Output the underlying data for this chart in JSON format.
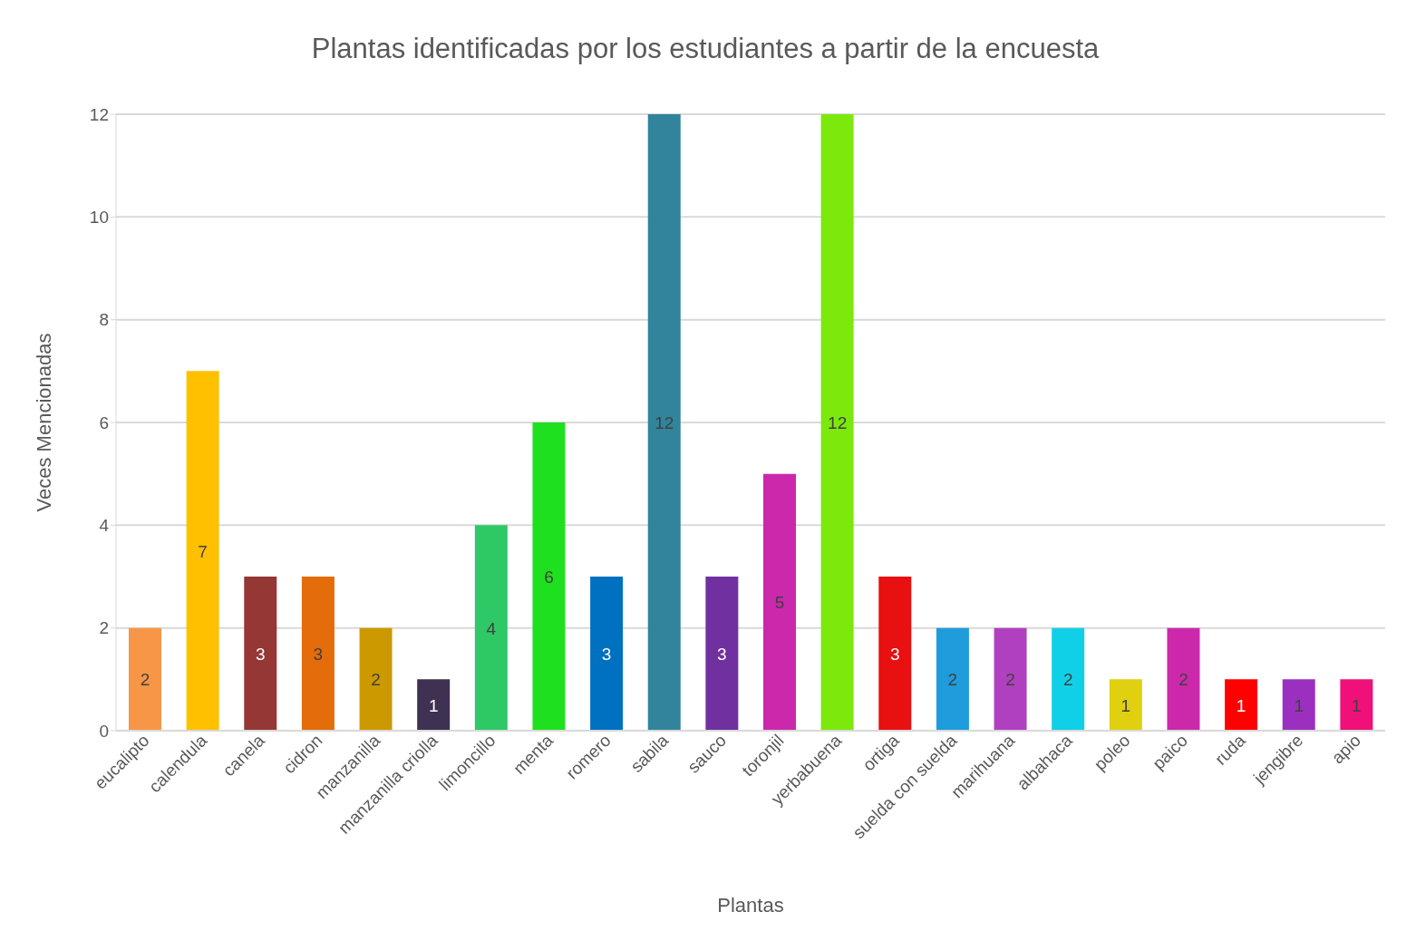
{
  "chart_data": {
    "type": "bar",
    "title": "Plantas identificadas por los estudiantes a partir de la encuesta",
    "xlabel": "Plantas",
    "ylabel": "Veces Mencionadas",
    "categories": [
      "eucalipto",
      "calendula",
      "canela",
      "cidron",
      "manzanilla",
      "manzanilla criolla",
      "limoncillo",
      "menta",
      "romero",
      "sabila",
      "sauco",
      "toronjil",
      "yerbabuena",
      "ortiga",
      "suelda con suelda",
      "marihuana",
      "albahaca",
      "poleo",
      "paico",
      "ruda",
      "jengibre",
      "apio"
    ],
    "values": [
      2,
      7,
      3,
      3,
      2,
      1,
      4,
      6,
      3,
      12,
      3,
      5,
      12,
      3,
      2,
      2,
      2,
      1,
      2,
      1,
      1,
      1
    ],
    "colors": [
      "#f79646",
      "#ffc000",
      "#953735",
      "#e46c0a",
      "#cc9900",
      "#3f3151",
      "#2ec866",
      "#1ee01e",
      "#0070c0",
      "#31849b",
      "#7030a0",
      "#cc28ac",
      "#7ce80c",
      "#e81010",
      "#1e9cdc",
      "#b040c0",
      "#10d0e8",
      "#e0d010",
      "#cc28ac",
      "#ff0000",
      "#9b30c0",
      "#f0107a"
    ],
    "ylim": [
      0,
      12
    ],
    "yticks": [
      0,
      2,
      4,
      6,
      8,
      10,
      12
    ],
    "grid": "y",
    "legend": false,
    "data_labels": true
  }
}
